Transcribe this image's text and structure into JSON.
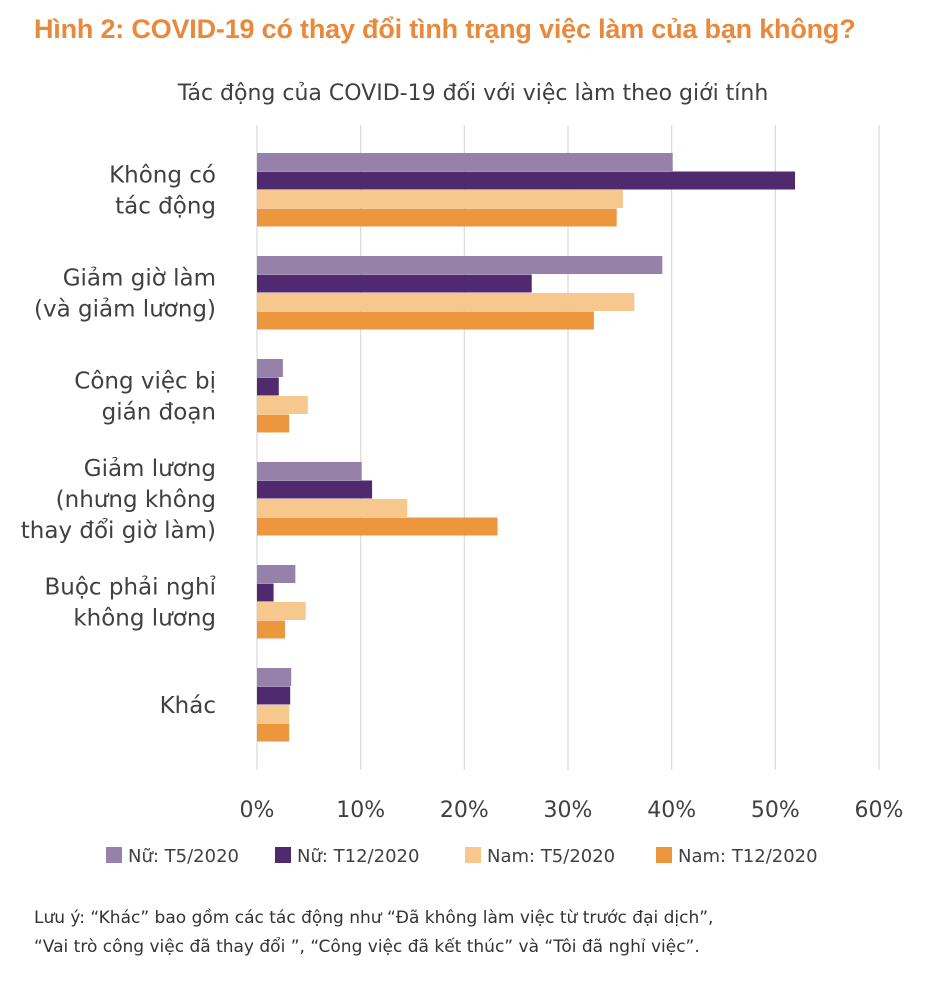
{
  "figure_title": "Hình 2: COVID-19 có thay đổi tình trạng việc làm của bạn không?",
  "chart_data": {
    "type": "bar",
    "orientation": "horizontal",
    "title": "Tác động của COVID-19 đối với việc làm theo giới tính",
    "xlabel": "",
    "ylabel": "",
    "xlim": [
      0,
      60
    ],
    "x_ticks": [
      "0%",
      "10%",
      "20%",
      "30%",
      "40%",
      "50%",
      "60%"
    ],
    "x_tick_values": [
      0,
      10,
      20,
      30,
      40,
      50,
      60
    ],
    "grid": true,
    "legend_position": "bottom",
    "categories": [
      [
        "Không có",
        "tác động"
      ],
      [
        "Giảm giờ làm",
        "(và giảm lương)"
      ],
      [
        "Công việc bị",
        "gián đoạn"
      ],
      [
        "Giảm lương",
        "(nhưng không",
        "thay đổi giờ làm)"
      ],
      [
        "Buộc phải nghỉ",
        "không lương"
      ],
      [
        "Khác"
      ]
    ],
    "series": [
      {
        "name": "Nữ: T5/2020",
        "color": "#9581aa",
        "values": [
          40.1,
          39.1,
          2.5,
          10.1,
          3.7,
          3.3
        ]
      },
      {
        "name": "Nữ: T12/2020",
        "color": "#4f2a6e",
        "values": [
          51.9,
          26.5,
          2.1,
          11.1,
          1.6,
          3.2
        ]
      },
      {
        "name": "Nam: T5/2020",
        "color": "#f6c88d",
        "values": [
          35.3,
          36.4,
          4.9,
          14.5,
          4.7,
          3.1
        ]
      },
      {
        "name": "Nam: T12/2020",
        "color": "#ec973e",
        "values": [
          34.7,
          32.5,
          3.1,
          23.2,
          2.7,
          3.1
        ]
      }
    ]
  },
  "note": {
    "line1": "Lưu ý: “Khác” bao gồm các tác động như “Đã không làm việc từ trước đại dịch”,",
    "line2": "“Vai trò công việc đã thay đổi ”, “Công việc đã kết thúc” và “Tôi đã nghỉ việc”."
  }
}
